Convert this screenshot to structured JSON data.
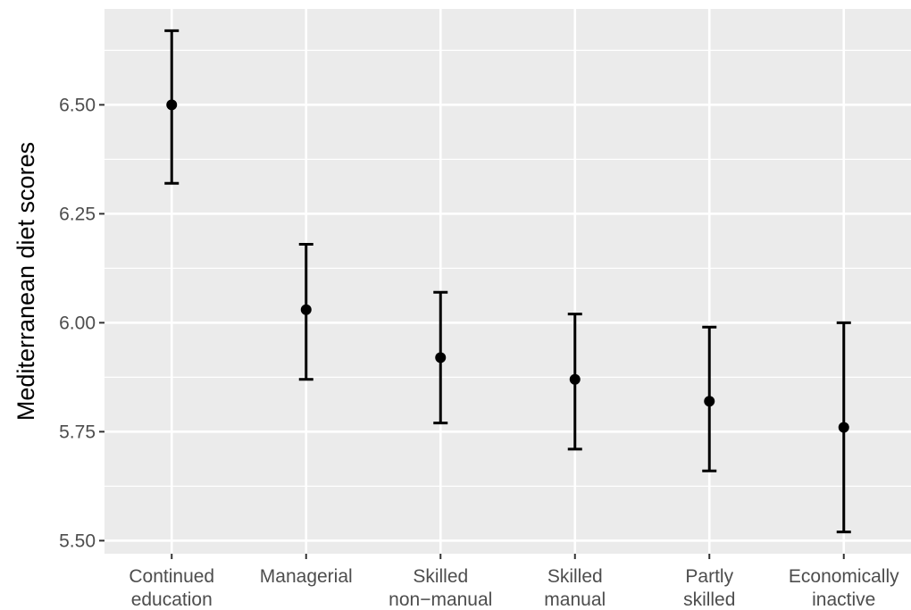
{
  "chart_data": {
    "type": "scatter",
    "subtype": "point-with-error-bars",
    "title": "",
    "xlabel": "",
    "ylabel": "Mediterranean diet scores",
    "categories": [
      [
        "Continued",
        "education"
      ],
      [
        "Managerial"
      ],
      [
        "Skilled",
        "non−manual"
      ],
      [
        "Skilled",
        "manual"
      ],
      [
        "Partly",
        "skilled"
      ],
      [
        "Economically",
        "inactive"
      ]
    ],
    "values": [
      6.5,
      6.03,
      5.92,
      5.87,
      5.82,
      5.76
    ],
    "lower": [
      6.32,
      5.87,
      5.77,
      5.71,
      5.66,
      5.52
    ],
    "upper": [
      6.67,
      6.18,
      6.07,
      6.02,
      5.99,
      6.0
    ],
    "ylim": [
      5.47,
      6.72
    ],
    "yticks": [
      5.5,
      5.75,
      6.0,
      6.25,
      6.5
    ],
    "ytick_labels": [
      "5.50",
      "5.75",
      "6.00",
      "6.25",
      "6.50"
    ],
    "grid": true,
    "legend": "none",
    "colors": {
      "panel": "#ebebeb",
      "grid": "#ffffff",
      "marks": "#000000",
      "tick_text": "#4d4d4d",
      "axis_text": "#000000",
      "ticks": "#333333"
    }
  }
}
